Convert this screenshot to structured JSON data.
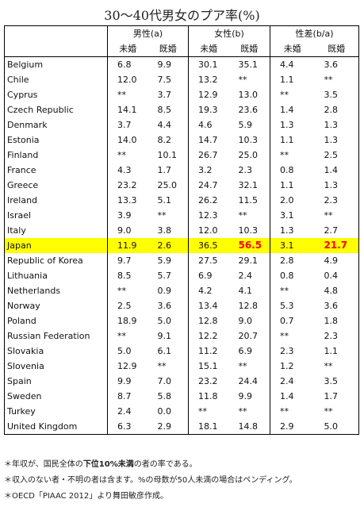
{
  "title": "30～40代男女のプア率(%)",
  "table": {
    "groups": [
      "男性(a)",
      "女性(b)",
      "性差(b/a)"
    ],
    "subheaders": [
      "未婚",
      "既婚",
      "未婚",
      "既婚",
      "未婚",
      "既婚"
    ],
    "rows": [
      [
        "Belgium",
        "6.8",
        "9.9",
        "30.1",
        "35.1",
        "4.4",
        "3.6"
      ],
      [
        "Chile",
        "12.0",
        "7.5",
        "13.2",
        "**",
        "1.1",
        "**"
      ],
      [
        "Cyprus",
        "**",
        "3.7",
        "12.9",
        "13.0",
        "**",
        "3.5"
      ],
      [
        "Czech Republic",
        "14.1",
        "8.5",
        "19.3",
        "23.6",
        "1.4",
        "2.8"
      ],
      [
        "Denmark",
        "3.7",
        "4.4",
        "4.6",
        "5.9",
        "1.3",
        "1.3"
      ],
      [
        "Estonia",
        "14.0",
        "8.2",
        "14.7",
        "10.3",
        "1.1",
        "1.3"
      ],
      [
        "Finland",
        "**",
        "10.1",
        "26.7",
        "25.0",
        "**",
        "2.5"
      ],
      [
        "France",
        "4.3",
        "1.7",
        "3.2",
        "2.3",
        "0.8",
        "1.4"
      ],
      [
        "Greece",
        "23.2",
        "25.0",
        "24.7",
        "32.1",
        "1.1",
        "1.3"
      ],
      [
        "Ireland",
        "13.3",
        "5.1",
        "26.2",
        "11.5",
        "2.0",
        "2.3"
      ],
      [
        "Israel",
        "3.9",
        "**",
        "12.3",
        "**",
        "3.1",
        "**"
      ],
      [
        "Italy",
        "9.0",
        "3.8",
        "12.0",
        "10.3",
        "1.3",
        "2.7"
      ],
      [
        "Japan",
        "11.9",
        "2.6",
        "36.5",
        "56.5",
        "3.1",
        "21.7"
      ],
      [
        "Republic of Korea",
        "9.7",
        "5.9",
        "27.5",
        "29.1",
        "2.8",
        "4.9"
      ],
      [
        "Lithuania",
        "8.5",
        "5.7",
        "6.9",
        "2.4",
        "0.8",
        "0.4"
      ],
      [
        "Netherlands",
        "**",
        "0.9",
        "4.2",
        "4.1",
        "**",
        "4.8"
      ],
      [
        "Norway",
        "2.5",
        "3.6",
        "13.4",
        "12.8",
        "5.3",
        "3.6"
      ],
      [
        "Poland",
        "18.9",
        "5.0",
        "12.8",
        "9.0",
        "0.7",
        "1.8"
      ],
      [
        "Russian Federation",
        "**",
        "9.1",
        "12.2",
        "20.7",
        "**",
        "2.3"
      ],
      [
        "Slovakia",
        "5.0",
        "6.1",
        "11.2",
        "6.9",
        "2.3",
        "1.1"
      ],
      [
        "Slovenia",
        "12.9",
        "**",
        "15.1",
        "**",
        "1.2",
        "**"
      ],
      [
        "Spain",
        "9.9",
        "7.0",
        "23.2",
        "24.4",
        "2.4",
        "3.5"
      ],
      [
        "Sweden",
        "8.7",
        "5.8",
        "11.8",
        "9.9",
        "1.4",
        "1.7"
      ],
      [
        "Turkey",
        "2.4",
        "0.0",
        "**",
        "**",
        "**",
        "**"
      ],
      [
        "United Kingdom",
        "6.3",
        "2.9",
        "18.1",
        "14.8",
        "2.9",
        "5.0"
      ]
    ],
    "highlight_row": 12,
    "highlight_color": "#ffff00",
    "emphasis_cells": [
      4,
      6
    ],
    "emphasis_color": "#ff0000"
  },
  "footnotes": [
    [
      "＊年収が、国民全体の",
      "下位10%未満",
      "の者の率である。"
    ],
    [
      "＊収入のない者・不明の者は含ます。%の母数が50人未満の場合はペンディング。"
    ],
    [
      "＊OECD「PIAAC 2012」より舞田敏彦作成。"
    ]
  ]
}
